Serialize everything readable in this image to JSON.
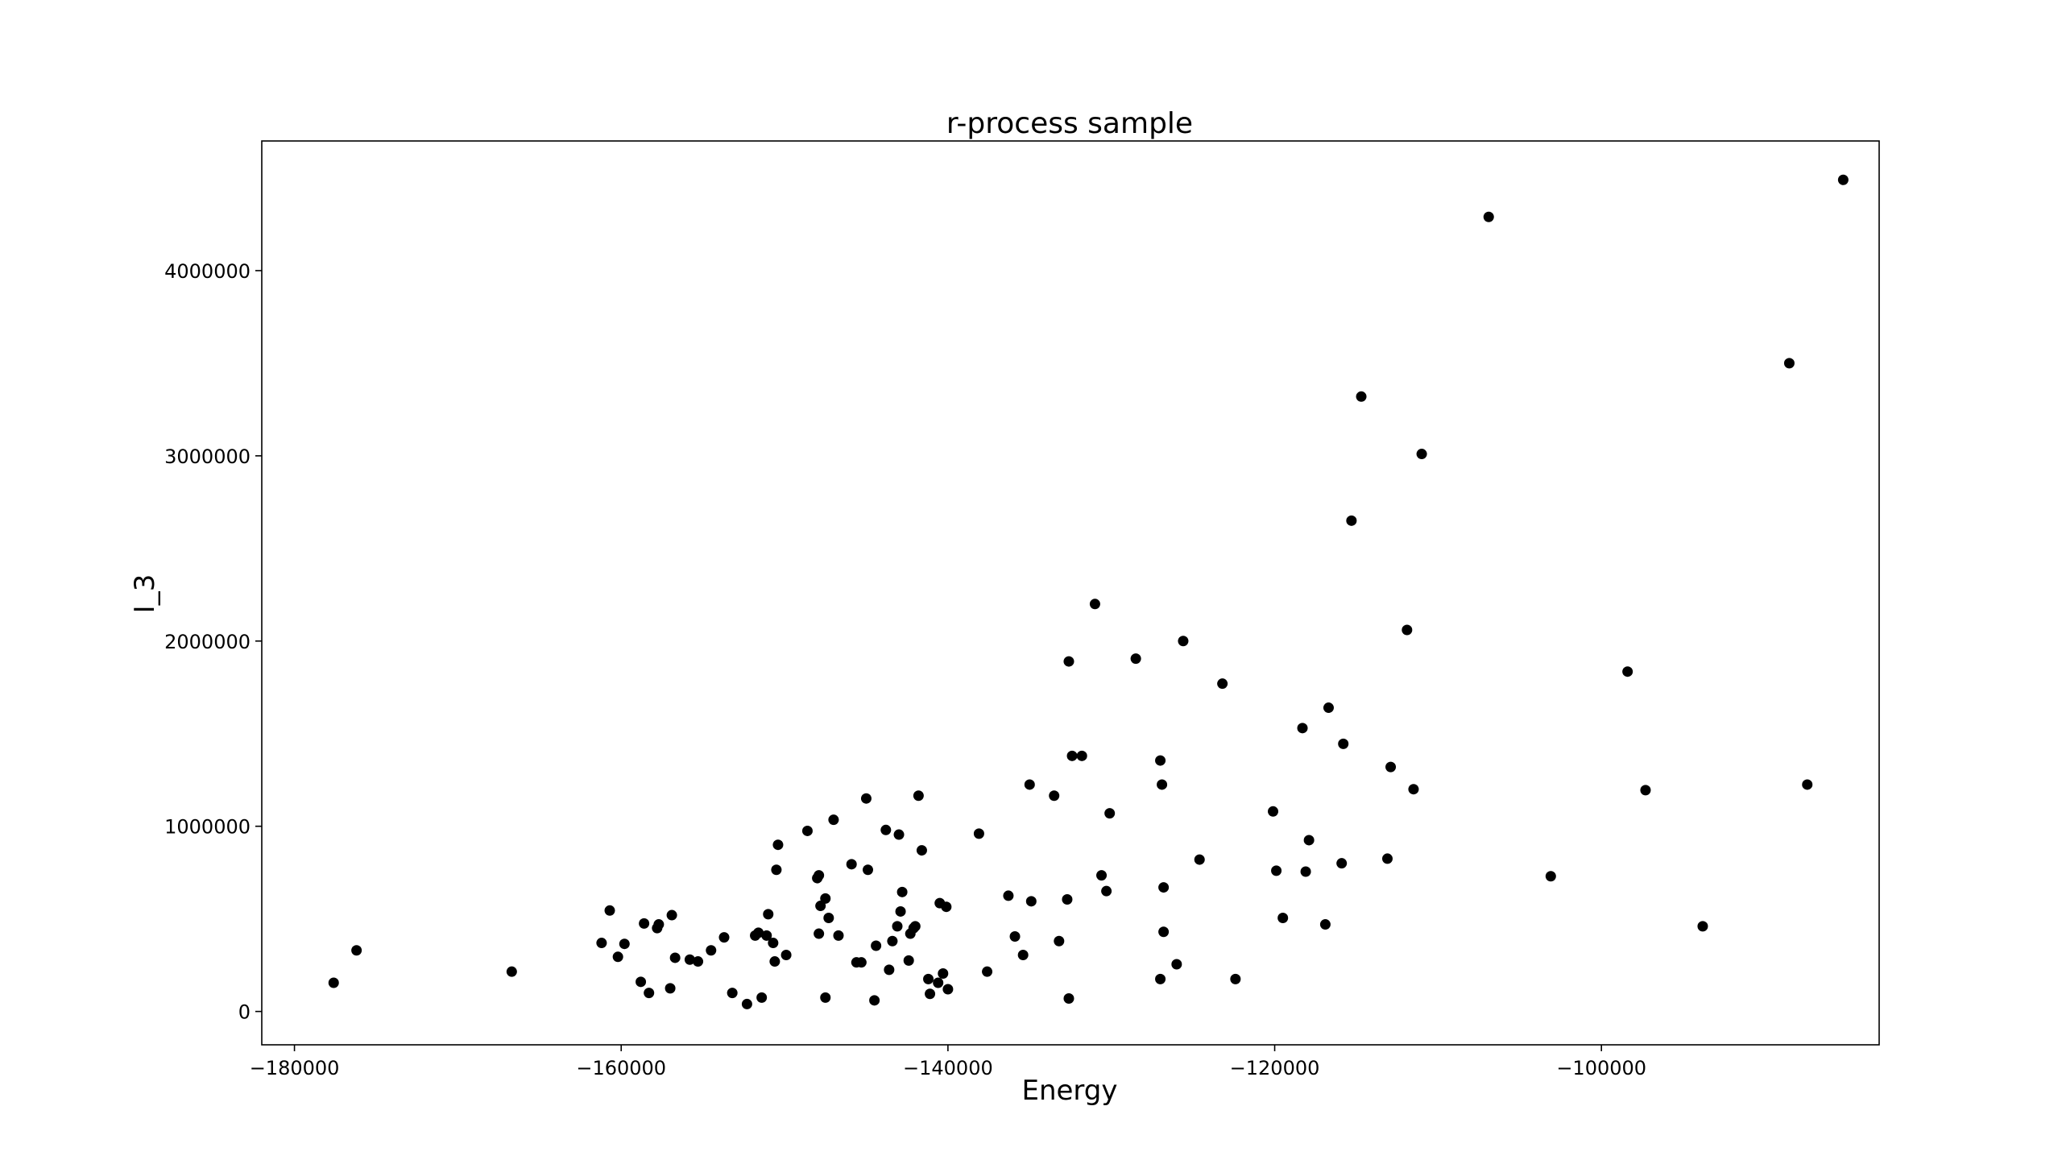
{
  "chart_data": {
    "type": "scatter",
    "title": "r-process sample",
    "xlabel": "Energy",
    "ylabel": "I_3",
    "xlim": [
      -182000,
      -83000
    ],
    "ylim": [
      -180000,
      4700000
    ],
    "xticks": [
      -180000,
      -160000,
      -140000,
      -120000,
      -100000
    ],
    "yticks": [
      0,
      1000000,
      2000000,
      3000000,
      4000000
    ],
    "xtick_labels": [
      "−180000",
      "−160000",
      "−140000",
      "−120000",
      "−100000"
    ],
    "ytick_labels": [
      "0",
      "1000000",
      "2000000",
      "3000000",
      "4000000"
    ],
    "grid": false,
    "marker_color": "#000000",
    "series": [
      {
        "points": [
          [
            -177600,
            155000
          ],
          [
            -176200,
            330000
          ],
          [
            -166700,
            215000
          ],
          [
            -161200,
            370000
          ],
          [
            -160700,
            545000
          ],
          [
            -160200,
            295000
          ],
          [
            -159800,
            365000
          ],
          [
            -158800,
            160000
          ],
          [
            -158600,
            475000
          ],
          [
            -158300,
            100000
          ],
          [
            -157800,
            450000
          ],
          [
            -157700,
            470000
          ],
          [
            -157000,
            125000
          ],
          [
            -156900,
            520000
          ],
          [
            -156700,
            290000
          ],
          [
            -155800,
            280000
          ],
          [
            -155300,
            270000
          ],
          [
            -154500,
            330000
          ],
          [
            -153700,
            400000
          ],
          [
            -153200,
            100000
          ],
          [
            -152300,
            40000
          ],
          [
            -151800,
            410000
          ],
          [
            -151600,
            425000
          ],
          [
            -151400,
            75000
          ],
          [
            -151100,
            410000
          ],
          [
            -151000,
            525000
          ],
          [
            -150700,
            370000
          ],
          [
            -150600,
            270000
          ],
          [
            -150500,
            765000
          ],
          [
            -150400,
            900000
          ],
          [
            -149900,
            305000
          ],
          [
            -148600,
            975000
          ],
          [
            -148000,
            720000
          ],
          [
            -147900,
            735000
          ],
          [
            -147900,
            420000
          ],
          [
            -147800,
            570000
          ],
          [
            -147500,
            610000
          ],
          [
            -147500,
            75000
          ],
          [
            -147300,
            505000
          ],
          [
            -147000,
            1035000
          ],
          [
            -146700,
            410000
          ],
          [
            -145900,
            795000
          ],
          [
            -145600,
            265000
          ],
          [
            -145300,
            265000
          ],
          [
            -145000,
            1150000
          ],
          [
            -144900,
            765000
          ],
          [
            -144500,
            60000
          ],
          [
            -144400,
            355000
          ],
          [
            -143800,
            980000
          ],
          [
            -143600,
            225000
          ],
          [
            -143400,
            380000
          ],
          [
            -143100,
            460000
          ],
          [
            -143000,
            955000
          ],
          [
            -142900,
            540000
          ],
          [
            -142800,
            645000
          ],
          [
            -142400,
            275000
          ],
          [
            -142300,
            420000
          ],
          [
            -142100,
            450000
          ],
          [
            -142000,
            460000
          ],
          [
            -141800,
            1165000
          ],
          [
            -141600,
            870000
          ],
          [
            -141200,
            175000
          ],
          [
            -141100,
            95000
          ],
          [
            -140600,
            155000
          ],
          [
            -140500,
            585000
          ],
          [
            -140300,
            205000
          ],
          [
            -140100,
            565000
          ],
          [
            -140000,
            120000
          ],
          [
            -138100,
            960000
          ],
          [
            -137600,
            215000
          ],
          [
            -136300,
            625000
          ],
          [
            -135900,
            405000
          ],
          [
            -135400,
            305000
          ],
          [
            -135000,
            1225000
          ],
          [
            -134900,
            595000
          ],
          [
            -133500,
            1165000
          ],
          [
            -133200,
            380000
          ],
          [
            -132700,
            605000
          ],
          [
            -132600,
            1890000
          ],
          [
            -132600,
            70000
          ],
          [
            -132400,
            1380000
          ],
          [
            -131800,
            1380000
          ],
          [
            -131000,
            2200000
          ],
          [
            -130600,
            735000
          ],
          [
            -130300,
            650000
          ],
          [
            -130100,
            1070000
          ],
          [
            -128500,
            1905000
          ],
          [
            -127000,
            1355000
          ],
          [
            -127000,
            175000
          ],
          [
            -126900,
            1225000
          ],
          [
            -126800,
            670000
          ],
          [
            -126800,
            430000
          ],
          [
            -126000,
            255000
          ],
          [
            -125600,
            2000000
          ],
          [
            -124600,
            820000
          ],
          [
            -123200,
            1770000
          ],
          [
            -122400,
            175000
          ],
          [
            -120100,
            1080000
          ],
          [
            -119900,
            760000
          ],
          [
            -119500,
            505000
          ],
          [
            -118300,
            1530000
          ],
          [
            -118100,
            755000
          ],
          [
            -117900,
            925000
          ],
          [
            -116900,
            470000
          ],
          [
            -116700,
            1640000
          ],
          [
            -115900,
            800000
          ],
          [
            -115800,
            1445000
          ],
          [
            -115300,
            2650000
          ],
          [
            -114700,
            3320000
          ],
          [
            -113100,
            825000
          ],
          [
            -112900,
            1320000
          ],
          [
            -111900,
            2060000
          ],
          [
            -111500,
            1200000
          ],
          [
            -111000,
            3010000
          ],
          [
            -106900,
            4290000
          ],
          [
            -103100,
            730000
          ],
          [
            -98400,
            1835000
          ],
          [
            -97300,
            1195000
          ],
          [
            -93800,
            460000
          ],
          [
            -88500,
            3500000
          ],
          [
            -87400,
            1225000
          ],
          [
            -85200,
            4490000
          ]
        ]
      }
    ]
  }
}
